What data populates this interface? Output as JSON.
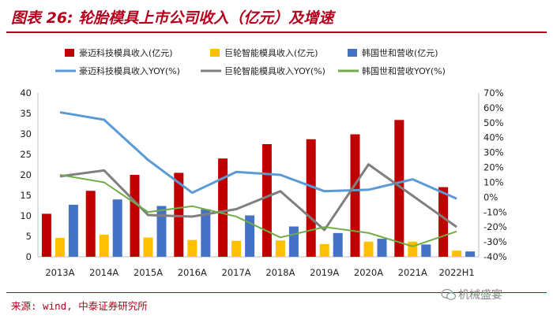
{
  "header": {
    "title": "图表 26: 轮胎模具上市公司收入（亿元）及增速"
  },
  "footer": {
    "source": "来源: wind, 中泰证券研究所",
    "watermark": "机械盛宴"
  },
  "chart_data": {
    "type": "bar",
    "title": "轮胎模具上市公司收入（亿元）及增速",
    "categories": [
      "2013A",
      "2014A",
      "2015A",
      "2016A",
      "2017A",
      "2018A",
      "2019A",
      "2020A",
      "2021A",
      "2022H1"
    ],
    "ylim": [
      0,
      40
    ],
    "y_ticks": [
      0,
      5,
      10,
      15,
      20,
      25,
      30,
      35,
      40
    ],
    "y2lim": [
      -40,
      70
    ],
    "y2_ticks": [
      "-40%",
      "-30%",
      "-20%",
      "-10%",
      "0%",
      "10%",
      "20%",
      "30%",
      "40%",
      "50%",
      "60%",
      "70%"
    ],
    "series": [
      {
        "name": "豪迈科技模具收入(亿元)",
        "type": "bar",
        "color": "#c00000",
        "values": [
          10.5,
          16.1,
          20.0,
          20.5,
          24.0,
          27.5,
          28.7,
          29.9,
          33.4,
          17.0
        ]
      },
      {
        "name": "巨轮智能模具收入(亿元)",
        "type": "bar",
        "color": "#ffc000",
        "values": [
          4.6,
          5.4,
          4.7,
          4.1,
          3.9,
          4.0,
          3.1,
          3.7,
          3.7,
          1.5
        ]
      },
      {
        "name": "韩国世和营收(亿元)",
        "type": "bar",
        "color": "#4472c4",
        "values": [
          12.7,
          14.0,
          12.4,
          11.6,
          10.1,
          7.4,
          5.8,
          4.4,
          3.0,
          1.3
        ]
      },
      {
        "name": "豪迈科技模具收入YOY(%)",
        "type": "line",
        "color": "#5b9bd5",
        "values": [
          57,
          52,
          25,
          3,
          17,
          15,
          4,
          5,
          12,
          -1
        ]
      },
      {
        "name": "巨轮智能模具收入YOY(%)",
        "type": "line",
        "color": "#7f7f7f",
        "values": [
          14,
          18,
          -12,
          -13,
          -8,
          4,
          -22,
          22,
          1,
          -20
        ]
      },
      {
        "name": "韩国世和营收YOY(%)",
        "type": "line",
        "color": "#70ad47",
        "values": [
          15,
          10,
          -10,
          -6,
          -13,
          -27,
          -20,
          -24,
          -33,
          -23
        ]
      }
    ]
  }
}
